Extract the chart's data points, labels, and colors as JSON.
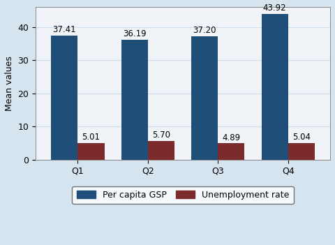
{
  "quarters": [
    "Q1",
    "Q2",
    "Q3",
    "Q4"
  ],
  "gsp_values": [
    37.41,
    36.19,
    37.2,
    43.92
  ],
  "unemp_values": [
    5.01,
    5.7,
    4.89,
    5.04
  ],
  "gsp_color": "#1F4E79",
  "unemp_color": "#7B2B2B",
  "ylabel": "Mean values",
  "ylim": [
    0,
    46
  ],
  "yticks": [
    0,
    10,
    20,
    30,
    40
  ],
  "legend_labels": [
    "Per capita GSP",
    "Unemployment rate"
  ],
  "fig_background_color": "#D6E4F0",
  "plot_background": "#F0F4F8",
  "bar_width": 0.38,
  "annotation_fontsize": 8.5,
  "axis_fontsize": 9,
  "tick_fontsize": 9,
  "legend_fontsize": 9,
  "grid_color": "#CCDDEE",
  "border_color": "#555555"
}
